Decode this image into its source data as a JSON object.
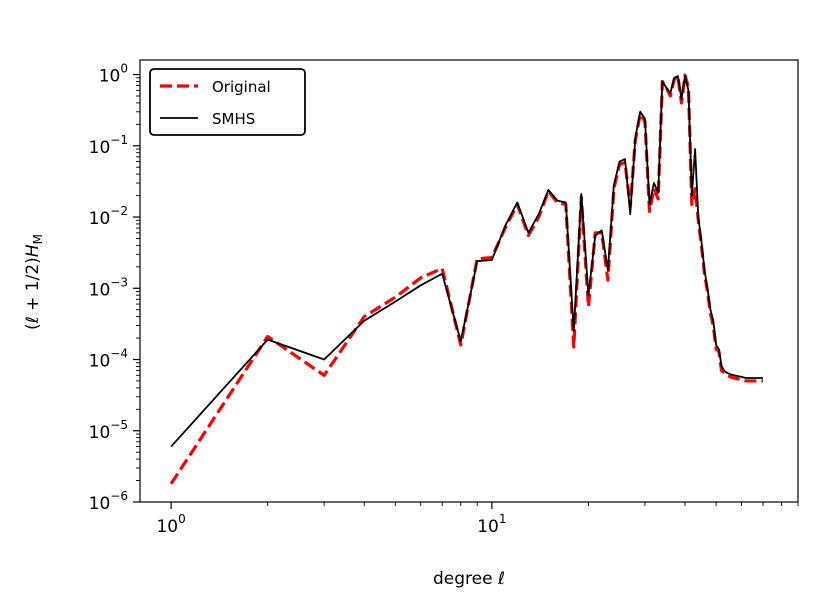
{
  "chart_data": {
    "type": "line",
    "title": "",
    "xlabel": "degree ℓ",
    "ylabel": "(ℓ + 1/2)H_M",
    "xscale": "log",
    "yscale": "log",
    "xlim": [
      0.8,
      90
    ],
    "ylim": [
      1e-06,
      1.6
    ],
    "grid": false,
    "legend_position": "top-left",
    "x_ticks": [
      {
        "value": 1,
        "base": "10",
        "exp": "0"
      },
      {
        "value": 10,
        "base": "10",
        "exp": "1"
      }
    ],
    "y_ticks": [
      {
        "value": 1e-06,
        "base": "10",
        "exp": "−6"
      },
      {
        "value": 1e-05,
        "base": "10",
        "exp": "−5"
      },
      {
        "value": 0.0001,
        "base": "10",
        "exp": "−4"
      },
      {
        "value": 0.001,
        "base": "10",
        "exp": "−3"
      },
      {
        "value": 0.01,
        "base": "10",
        "exp": "−2"
      },
      {
        "value": 0.1,
        "base": "10",
        "exp": "−1"
      },
      {
        "value": 1,
        "base": "10",
        "exp": "0"
      }
    ],
    "series": [
      {
        "name": "Original",
        "color": "#ff0000",
        "style": "dashed",
        "x": [
          1,
          2,
          3,
          4,
          5,
          6,
          7,
          8,
          9,
          10,
          11,
          12,
          13,
          14,
          15,
          16,
          17,
          18,
          19,
          20,
          21,
          22,
          23,
          24,
          25,
          26,
          27,
          28,
          29,
          30,
          31,
          32,
          33,
          34,
          35,
          36,
          37,
          38,
          39,
          40,
          41,
          42,
          43,
          44,
          45,
          46,
          47,
          48,
          49,
          50,
          51,
          52,
          53,
          54,
          55,
          56,
          57,
          58,
          59,
          60,
          61,
          62,
          63,
          64,
          65,
          66,
          67,
          68,
          69,
          70
        ],
        "y": [
          1.8e-06,
          0.00021,
          6e-05,
          0.0004,
          0.00075,
          0.0014,
          0.0019,
          0.00016,
          0.0026,
          0.0027,
          0.007,
          0.015,
          0.0055,
          0.01,
          0.023,
          0.016,
          0.015,
          0.00015,
          0.019,
          0.00055,
          0.006,
          0.006,
          0.0013,
          0.025,
          0.055,
          0.058,
          0.014,
          0.12,
          0.28,
          0.22,
          0.012,
          0.025,
          0.018,
          0.8,
          0.65,
          0.5,
          0.85,
          0.95,
          0.4,
          0.98,
          0.65,
          0.015,
          0.025,
          0.009,
          0.004,
          0.0016,
          0.0009,
          0.00045,
          0.0003,
          0.00014,
          0.00013,
          7e-05,
          6.5e-05,
          6e-05,
          5.8e-05,
          5.6e-05,
          5.5e-05,
          5.4e-05,
          5.3e-05,
          5.2e-05,
          5.1e-05,
          5e-05,
          5e-05,
          5e-05,
          5e-05,
          5e-05,
          5e-05,
          5e-05,
          5e-05,
          5e-05
        ]
      },
      {
        "name": "SMHS",
        "color": "#000000",
        "style": "solid",
        "x": [
          1,
          2,
          3,
          4,
          5,
          6,
          7,
          8,
          9,
          10,
          11,
          12,
          13,
          14,
          15,
          16,
          17,
          18,
          19,
          20,
          21,
          22,
          23,
          24,
          25,
          26,
          27,
          28,
          29,
          30,
          31,
          32,
          33,
          34,
          35,
          36,
          37,
          38,
          39,
          40,
          41,
          42,
          43,
          44,
          45,
          46,
          47,
          48,
          49,
          50,
          51,
          52,
          53,
          54,
          55,
          56,
          57,
          58,
          59,
          60,
          61,
          62,
          63,
          64,
          65,
          66,
          67,
          68,
          69,
          70
        ],
        "y": [
          6e-06,
          0.00019,
          0.0001,
          0.00035,
          0.00065,
          0.0011,
          0.0016,
          0.00018,
          0.0024,
          0.0025,
          0.0075,
          0.016,
          0.006,
          0.011,
          0.024,
          0.017,
          0.016,
          0.00025,
          0.021,
          0.0008,
          0.0055,
          0.0065,
          0.0018,
          0.028,
          0.06,
          0.065,
          0.011,
          0.13,
          0.3,
          0.24,
          0.015,
          0.03,
          0.022,
          0.8,
          0.65,
          0.55,
          0.9,
          0.95,
          0.45,
          0.95,
          0.6,
          0.02,
          0.09,
          0.01,
          0.0045,
          0.0018,
          0.001,
          0.0005,
          0.00035,
          0.00016,
          0.00014,
          8e-05,
          7e-05,
          6.5e-05,
          6.3e-05,
          6.1e-05,
          6e-05,
          5.9e-05,
          5.8e-05,
          5.7e-05,
          5.6e-05,
          5.5e-05,
          5.5e-05,
          5.5e-05,
          5.5e-05,
          5.5e-05,
          5.5e-05,
          5.5e-05,
          5.5e-05,
          5.5e-05
        ]
      }
    ]
  }
}
